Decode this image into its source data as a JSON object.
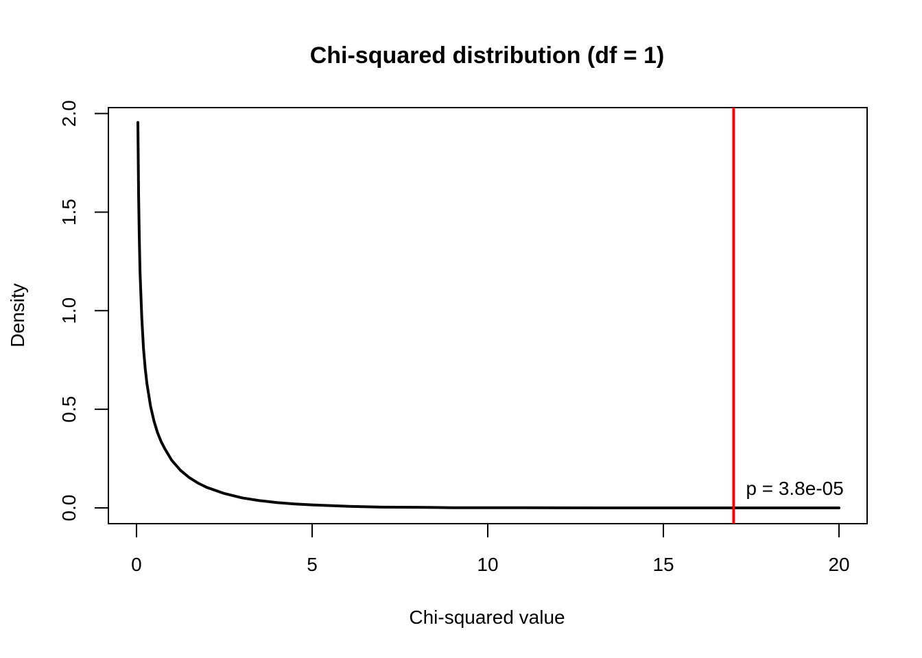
{
  "chart_data": {
    "type": "line",
    "title": "Chi-squared distribution (df = 1)",
    "xlabel": "Chi-squared value",
    "ylabel": "Density",
    "xlim": [
      -0.8,
      20.8
    ],
    "ylim": [
      -0.08,
      2.03
    ],
    "xticks": [
      0,
      5,
      10,
      15,
      20
    ],
    "xtick_labels": [
      "0",
      "5",
      "10",
      "15",
      "20"
    ],
    "yticks": [
      0.0,
      0.5,
      1.0,
      1.5,
      2.0
    ],
    "ytick_labels": [
      "0.0",
      "0.5",
      "1.0",
      "1.5",
      "2.0"
    ],
    "grid": false,
    "series": [
      {
        "color": "#000000",
        "x": [
          0.04,
          0.06,
          0.08,
          0.1,
          0.15,
          0.2,
          0.25,
          0.3,
          0.4,
          0.5,
          0.6,
          0.7,
          0.8,
          1.0,
          1.25,
          1.5,
          1.75,
          2.0,
          2.5,
          3.0,
          3.5,
          4.0,
          4.5,
          5.0,
          6.0,
          7.0,
          8.0,
          9.0,
          10.0,
          12.0,
          14.0,
          16.0,
          18.0,
          20.0
        ],
        "y": [
          1.955,
          1.585,
          1.367,
          1.2,
          0.967,
          0.807,
          0.704,
          0.627,
          0.516,
          0.439,
          0.381,
          0.337,
          0.302,
          0.242,
          0.191,
          0.154,
          0.126,
          0.104,
          0.073,
          0.051,
          0.037,
          0.027,
          0.02,
          0.015,
          0.008,
          0.004,
          0.003,
          0.001,
          0.001,
          0.0003,
          0.0001,
          0.0,
          0.0,
          0.0
        ]
      }
    ],
    "vline": {
      "x": 17.0,
      "color": "#ff0000"
    },
    "annotation": {
      "text": "p = 3.8e-05",
      "x": 17.35,
      "y": 0.1,
      "color": "#ff0000"
    }
  }
}
